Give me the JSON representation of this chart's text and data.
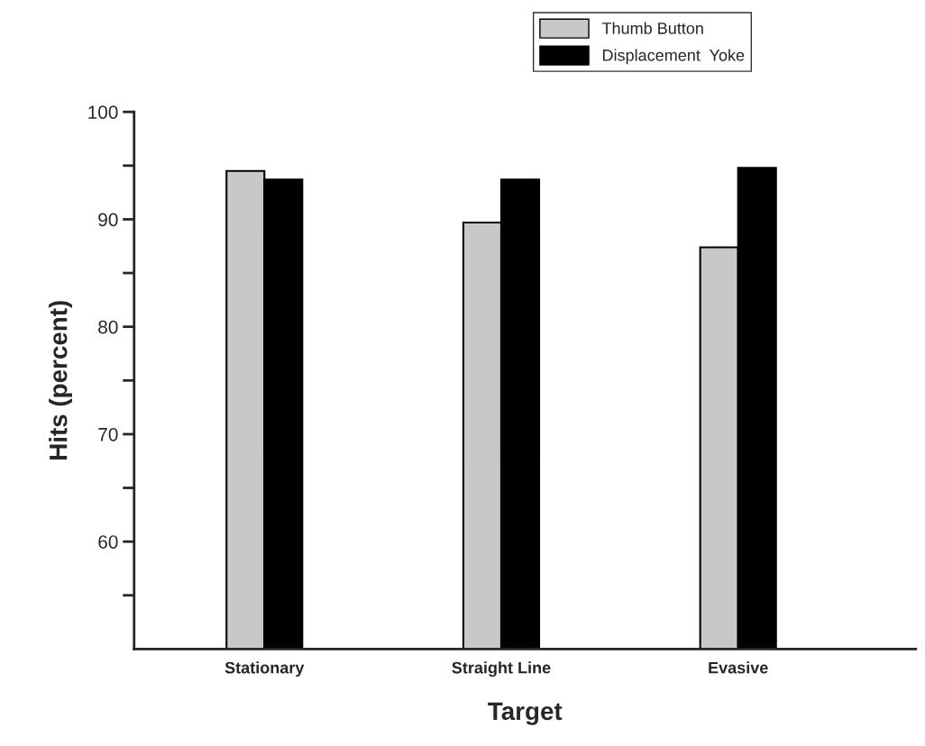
{
  "chart_data": {
    "type": "bar",
    "xlabel": "Target",
    "ylabel": "Hits (percent)",
    "categories": [
      "Stationary",
      "Straight Line",
      "Evasive"
    ],
    "series": [
      {
        "name": "Thumb Button",
        "color": "#c8c8c8",
        "values": [
          94.5,
          89.7,
          87.4
        ]
      },
      {
        "name": "Displacement  Yoke",
        "color": "#000000",
        "values": [
          93.7,
          93.7,
          94.8
        ]
      }
    ],
    "ylim": [
      50,
      100
    ],
    "yticks": [
      {
        "value": 55,
        "label": null
      },
      60,
      {
        "value": 65,
        "label": null
      },
      70,
      {
        "value": 75,
        "label": null
      },
      80,
      {
        "value": 85,
        "label": null
      },
      90,
      {
        "value": 95,
        "label": null
      },
      100
    ],
    "grid": false,
    "legend": "top right"
  }
}
